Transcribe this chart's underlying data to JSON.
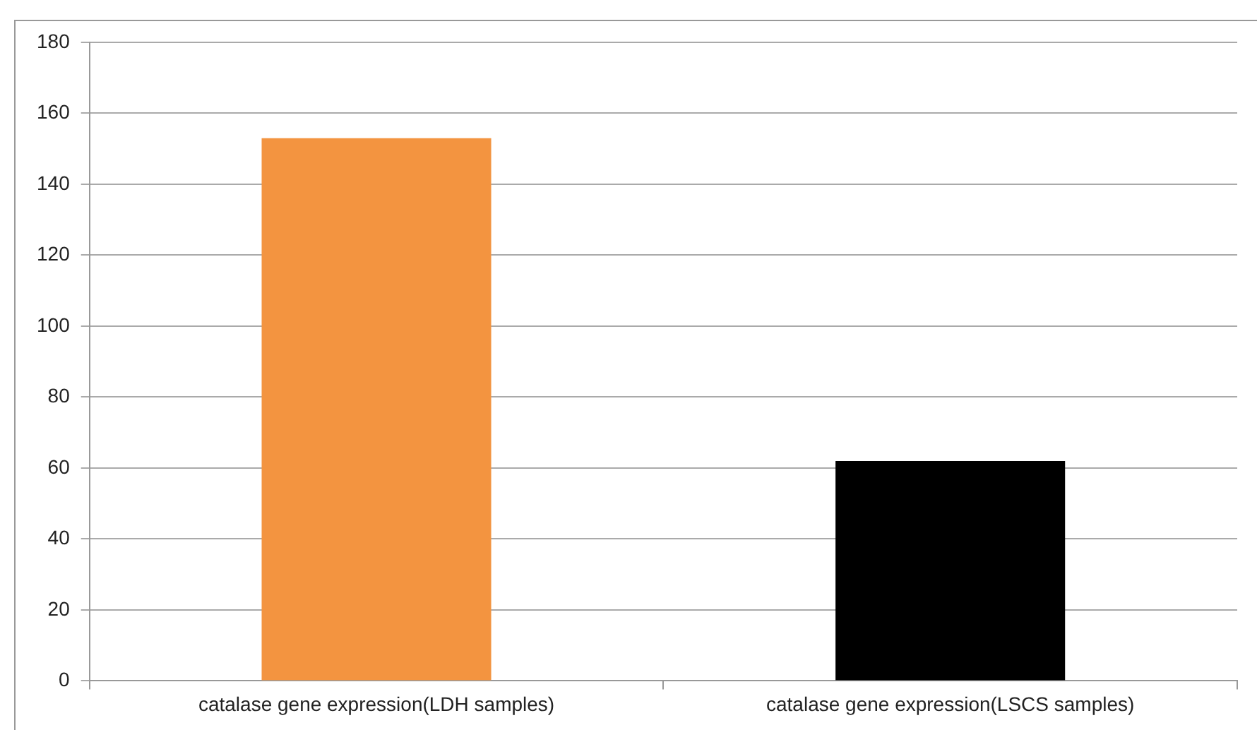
{
  "chart_data": {
    "type": "bar",
    "categories": [
      "catalase gene expression(LDH samples)",
      "catalase gene expression(LSCS samples)"
    ],
    "values": [
      153,
      62
    ],
    "colors": [
      "#f39440",
      "#000000"
    ],
    "ylim": [
      0,
      180
    ],
    "yticks": [
      0,
      20,
      40,
      60,
      80,
      100,
      120,
      140,
      160,
      180
    ],
    "grid": "y",
    "legend": false
  }
}
